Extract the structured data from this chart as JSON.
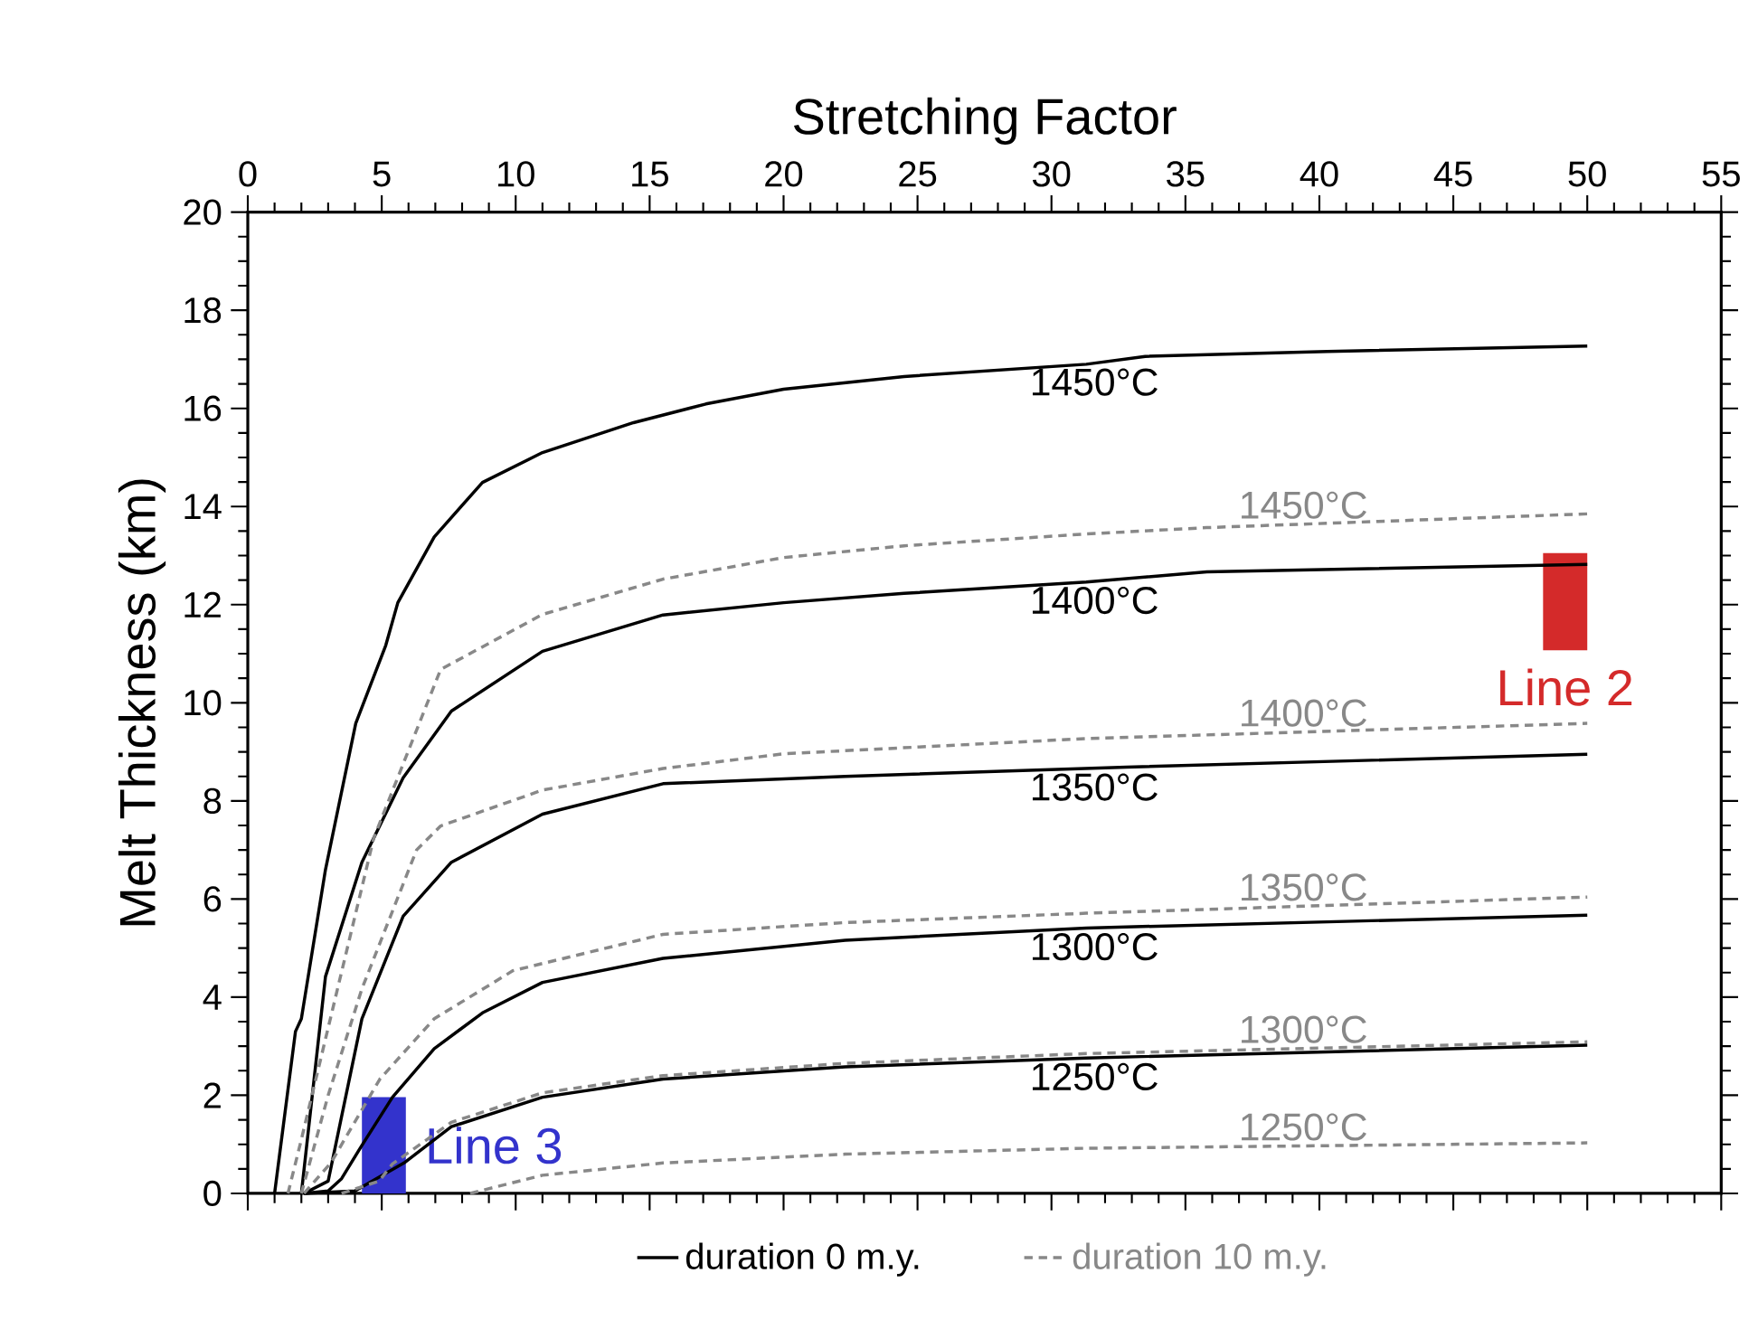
{
  "chart_data": {
    "type": "line",
    "xlabel": "Stretching Factor",
    "ylabel": "Melt Thickness (km)",
    "xlim": [
      0,
      55
    ],
    "ylim": [
      0,
      20
    ],
    "xticks": [
      0,
      5,
      10,
      15,
      20,
      25,
      30,
      35,
      40,
      45,
      50,
      55
    ],
    "yticks": [
      0,
      2,
      4,
      6,
      8,
      10,
      12,
      14,
      16,
      18,
      20
    ],
    "legend": "bottom",
    "series": [
      {
        "name": "duration 0 m.y.",
        "color": "#000000",
        "line_style": "solid",
        "x": [
          1.0,
          1.78,
          2.0,
          2.9,
          4.03,
          5.15,
          5.6,
          6.96,
          8.76,
          11.0,
          14.4,
          17.1,
          20.0,
          24.5,
          31.3,
          33.5,
          40.3,
          50.0
        ],
        "values": [
          0,
          3.3,
          3.56,
          6.6,
          9.58,
          11.17,
          12.04,
          13.38,
          14.49,
          15.1,
          15.71,
          16.09,
          16.39,
          16.65,
          16.9,
          17.06,
          17.16,
          17.27
        ]
      },
      {
        "color": "#000000",
        "line_style": "solid",
        "x": [
          2.0,
          2.9,
          4.26,
          5.8,
          7.6,
          11.0,
          15.5,
          20.0,
          24.5,
          31.3,
          35.8,
          50.0
        ],
        "values": [
          0,
          4.42,
          6.75,
          8.47,
          9.83,
          11.05,
          11.79,
          12.04,
          12.23,
          12.46,
          12.67,
          12.82
        ]
      },
      {
        "color": "#000000",
        "line_style": "solid",
        "x": [
          2.1,
          3.0,
          4.26,
          5.8,
          7.6,
          11.0,
          15.5,
          22.3,
          32.8,
          50.0
        ],
        "values": [
          0,
          0.25,
          3.56,
          5.65,
          6.75,
          7.73,
          8.35,
          8.5,
          8.69,
          8.95
        ]
      },
      {
        "color": "#000000",
        "line_style": "solid",
        "x": [
          2.1,
          3.0,
          3.5,
          4.26,
          5.4,
          6.96,
          8.76,
          11.0,
          15.5,
          22.3,
          31.3,
          50.0
        ],
        "values": [
          0,
          0.05,
          0.3,
          0.98,
          1.96,
          2.95,
          3.68,
          4.3,
          4.79,
          5.16,
          5.41,
          5.67
        ]
      },
      {
        "color": "#000000",
        "line_style": "solid",
        "x": [
          2.1,
          4.0,
          5.83,
          7.6,
          11.0,
          15.5,
          22.3,
          31.3,
          50.0
        ],
        "values": [
          0,
          0.05,
          0.62,
          1.36,
          1.96,
          2.33,
          2.58,
          2.76,
          3.02
        ]
      },
      {
        "name": "duration 10 m.y.",
        "color": "#888888",
        "line_style": "dashed",
        "x": [
          1.5,
          2.0,
          4.7,
          7.2,
          11.0,
          15.5,
          20.0,
          24.5,
          31.3,
          35.8,
          50.0
        ],
        "values": [
          0,
          1.1,
          7.24,
          10.68,
          11.8,
          12.52,
          12.96,
          13.2,
          13.44,
          13.57,
          13.85
        ]
      },
      {
        "color": "#888888",
        "line_style": "dashed",
        "x": [
          2.0,
          3.0,
          4.26,
          6.3,
          7.2,
          11.0,
          15.5,
          20.0,
          31.3,
          50.0
        ],
        "values": [
          0,
          2.0,
          4.17,
          7.0,
          7.49,
          8.22,
          8.66,
          8.96,
          9.27,
          9.58
        ]
      },
      {
        "color": "#888888",
        "line_style": "dashed",
        "x": [
          2.1,
          3.1,
          4.93,
          6.96,
          9.9,
          15.5,
          22.3,
          31.3,
          50.0
        ],
        "values": [
          0,
          0.62,
          2.33,
          3.56,
          4.54,
          5.28,
          5.52,
          5.71,
          6.04
        ]
      },
      {
        "color": "#888888",
        "line_style": "dashed",
        "x": [
          3.5,
          4.9,
          5.4,
          7.6,
          11.0,
          15.5,
          22.3,
          31.3,
          50.0
        ],
        "values": [
          0,
          0.25,
          0.6,
          1.45,
          2.05,
          2.4,
          2.65,
          2.85,
          3.09
        ]
      },
      {
        "color": "#888888",
        "line_style": "dashed",
        "x": [
          8.3,
          11.0,
          15.5,
          22.3,
          31.3,
          50.0
        ],
        "values": [
          0,
          0.37,
          0.62,
          0.8,
          0.92,
          1.03
        ]
      },
      {
        "name": "Line 3",
        "color": "#3333cc",
        "x": [
          4.26,
          5.9
        ],
        "values": [
          null,
          null
        ],
        "lower": [
          0,
          0
        ],
        "upper": [
          1.96,
          1.96
        ]
      },
      {
        "name": "Line 2",
        "color": "#d42a2a",
        "x": [
          48.35,
          50.0
        ],
        "values": [
          null,
          null
        ],
        "lower": [
          11.07,
          11.07
        ],
        "upper": [
          13.05,
          13.05
        ]
      }
    ],
    "annotations": [
      "1450°C",
      "1400°C",
      "1350°C",
      "1300°C",
      "1250°C",
      "1450°C",
      "1400°C",
      "1350°C",
      "1300°C",
      "1250°C"
    ]
  }
}
